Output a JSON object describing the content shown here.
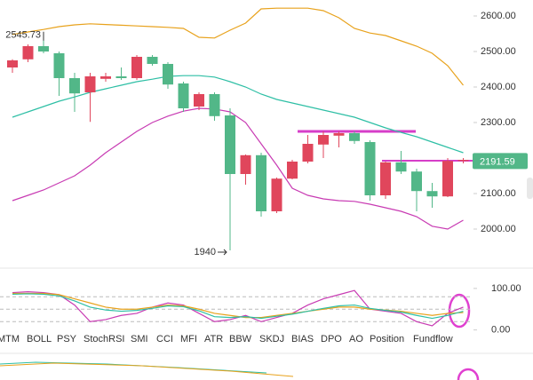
{
  "chart_data": [
    {
      "type": "candlestick",
      "categories": [
        null,
        null,
        null,
        null,
        null,
        null,
        null,
        null,
        null,
        null,
        null,
        null,
        null,
        null,
        null,
        null,
        null,
        null,
        null,
        null,
        null,
        null,
        null,
        null,
        null,
        null,
        null,
        null,
        null,
        null
      ],
      "open": [
        2475,
        2515,
        2500,
        2425,
        2382,
        2430,
        2430,
        2425,
        2485,
        2465,
        2407,
        2340,
        2380,
        2318,
        2155,
        2208,
        2050,
        2142,
        2190,
        2240,
        2265,
        2270,
        2248,
        2095,
        2188,
        2162,
        2107,
        2092,
        2192,
        2195
      ],
      "close": [
        2455,
        2478,
        2515,
        2495,
        2425,
        2385,
        2423,
        2430,
        2425,
        2485,
        2465,
        2410,
        2345,
        2380,
        2320,
        2155,
        2208,
        2050,
        2142,
        2190,
        2238,
        2263,
        2270,
        2245,
        2095,
        2188,
        2162,
        2107,
        2092,
        2191.59
      ],
      "high": [
        2478,
        2520,
        2545.73,
        2500,
        2440,
        2440,
        2440,
        2455,
        2490,
        2490,
        2470,
        2415,
        2385,
        2385,
        2340,
        2210,
        2215,
        2145,
        2195,
        2265,
        2275,
        2275,
        2275,
        2250,
        2190,
        2220,
        2170,
        2130,
        2200,
        2200
      ],
      "low": [
        2440,
        2470,
        2495,
        2375,
        2330,
        2302,
        2415,
        2420,
        2420,
        2460,
        2395,
        2330,
        2335,
        2305,
        1940,
        2125,
        2035,
        2045,
        2140,
        2185,
        2200,
        2230,
        2240,
        2080,
        2085,
        2155,
        2050,
        2060,
        2090,
        2185
      ],
      "up_color": "#52b788",
      "down_color": "#e0465c",
      "series": [
        {
          "color": "#e8a21c",
          "values": [
            2548,
            2555,
            2562,
            2570,
            2575,
            2578,
            2576,
            2574,
            2572,
            2570,
            2568,
            2565,
            2540,
            2538,
            2560,
            2580,
            2620,
            2622,
            2622,
            2622,
            2615,
            2595,
            2565,
            2552,
            2545,
            2530,
            2515,
            2495,
            2460,
            2405
          ]
        },
        {
          "color": "#2ebfa5",
          "values": [
            2315,
            2330,
            2345,
            2360,
            2372,
            2385,
            2395,
            2405,
            2415,
            2422,
            2430,
            2432,
            2432,
            2428,
            2415,
            2400,
            2380,
            2365,
            2355,
            2345,
            2335,
            2325,
            2315,
            2300,
            2285,
            2272,
            2260,
            2245,
            2230,
            2215
          ]
        },
        {
          "color": "#c83bb3",
          "values": [
            2080,
            2095,
            2110,
            2130,
            2150,
            2180,
            2215,
            2245,
            2275,
            2300,
            2318,
            2332,
            2340,
            2338,
            2330,
            2300,
            2240,
            2180,
            2115,
            2095,
            2085,
            2080,
            2078,
            2070,
            2060,
            2050,
            2035,
            2008,
            2000,
            2025
          ]
        }
      ],
      "ylim": [
        1895,
        2645
      ],
      "yticks": [
        {
          "value": 2000,
          "label": "2000.00"
        },
        {
          "value": 2100,
          "label": "2100.00"
        },
        {
          "value": 2200,
          "label": "2200.00"
        },
        {
          "value": 2300,
          "label": "2300.00"
        },
        {
          "value": 2400,
          "label": "2400.00"
        },
        {
          "value": 2500,
          "label": "2500.00"
        },
        {
          "value": 2600,
          "label": "2600.00"
        }
      ],
      "max_label": "2545.73",
      "min_label": "1940",
      "last_price_label": "2191.59",
      "last_price_color": "#52b788"
    },
    {
      "type": "line",
      "series": [
        {
          "color": "#c83bb3",
          "values": [
            90,
            92,
            90,
            85,
            60,
            20,
            25,
            35,
            40,
            55,
            65,
            60,
            40,
            20,
            25,
            35,
            20,
            30,
            40,
            60,
            75,
            85,
            95,
            50,
            45,
            40,
            20,
            10,
            40,
            55
          ]
        },
        {
          "color": "#e8a21c",
          "values": [
            88,
            88,
            88,
            85,
            75,
            65,
            55,
            50,
            50,
            55,
            60,
            58,
            50,
            40,
            35,
            30,
            30,
            35,
            40,
            45,
            50,
            55,
            55,
            50,
            48,
            45,
            40,
            35,
            40,
            42
          ]
        },
        {
          "color": "#2ebfa5",
          "values": [
            86,
            87,
            86,
            82,
            70,
            55,
            48,
            45,
            47,
            52,
            58,
            56,
            46,
            32,
            30,
            32,
            28,
            33,
            38,
            45,
            52,
            58,
            60,
            52,
            47,
            43,
            35,
            28,
            35,
            45
          ]
        }
      ],
      "ylim": [
        -50,
        142.5
      ],
      "yticks": [
        {
          "value": 0,
          "label": "0.00"
        },
        {
          "value": 100,
          "label": "100.00"
        }
      ],
      "levels": [
        80,
        50,
        20
      ]
    }
  ],
  "tabs": [
    "MTM",
    "BOLL",
    "PSY",
    "StochRSI",
    "SMI",
    "CCI",
    "MFI",
    "ATR",
    "BBW",
    "SKDJ",
    "BIAS",
    "DPO",
    "AO",
    "Position",
    "Fundflow"
  ]
}
